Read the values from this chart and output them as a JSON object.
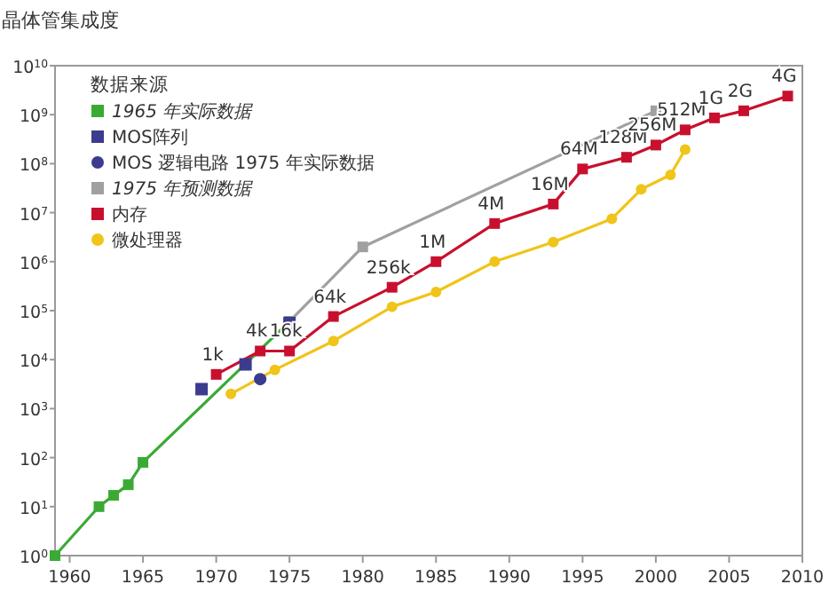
{
  "chart_data": {
    "type": "line",
    "ylabel": "晶体管集成度",
    "legend_title": "数据来源",
    "legend": "top left",
    "log": "y",
    "grid": false,
    "xlim": [
      1959,
      2010
    ],
    "xticks": [
      1960,
      1965,
      1970,
      1975,
      1980,
      1985,
      1990,
      1995,
      2000,
      2005,
      2010
    ],
    "ylim": [
      1,
      10000000000
    ],
    "yticks": [
      {
        "value": 1,
        "label": "10$^{0}$"
      },
      {
        "value": 10,
        "label": "10$^{1}$"
      },
      {
        "value": 100,
        "label": "10$^{2}$"
      },
      {
        "value": 1000,
        "label": "10$^{3}$"
      },
      {
        "value": 10000,
        "label": "10$^{4}$"
      },
      {
        "value": 100000,
        "label": "10$^{5}$"
      },
      {
        "value": 1000000,
        "label": "10$^{6}$"
      },
      {
        "value": 10000000,
        "label": "10$^{7}$"
      },
      {
        "value": 100000000,
        "label": "10$^{8}$"
      },
      {
        "value": 1000000000,
        "label": "10$^{9}$"
      },
      {
        "value": 10000000000,
        "label": "10$^{10}$"
      }
    ],
    "series": [
      {
        "name": "1965 年实际数据",
        "marker": "square",
        "color": "#3aaa35",
        "x": [
          1959,
          1962,
          1963,
          1964,
          1965,
          1975
        ],
        "values": [
          1,
          10,
          17,
          28,
          80,
          60000
        ]
      },
      {
        "name": "MOS阵列",
        "type": "scatter",
        "marker": "square",
        "color": "#3b3b8f",
        "x": [
          1969,
          1972,
          1975
        ],
        "values": [
          2500,
          8000,
          56000
        ]
      },
      {
        "name": "MOS 逻辑电路 1975 年实际数据",
        "type": "scatter",
        "marker": "circle",
        "color": "#3b3b8f",
        "x": [
          1973
        ],
        "values": [
          4000
        ]
      },
      {
        "name": "1975 年预测数据",
        "marker": "square",
        "color": "#a0a0a0",
        "x": [
          1975,
          1980,
          2000
        ],
        "values": [
          60000,
          2000000,
          1200000000
        ]
      },
      {
        "name": "内存",
        "marker": "square",
        "color": "#c8102e",
        "x": [
          1970,
          1973,
          1975,
          1978,
          1982,
          1985,
          1989,
          1993,
          1995,
          1998,
          2000,
          2002,
          2004,
          2006,
          2009
        ],
        "values": [
          5000,
          15000,
          15000,
          76000,
          300000,
          1000000,
          6000000,
          15000000,
          78000000,
          135000000,
          240000000,
          490000000,
          860000000,
          1200000000,
          2400000000
        ]
      },
      {
        "name": "微处理器",
        "marker": "circle",
        "color": "#f0c419",
        "x": [
          1971,
          1974,
          1978,
          1982,
          1985,
          1989,
          1993,
          1997,
          1999,
          2001,
          2002
        ],
        "values": [
          2000,
          6200,
          24000,
          120000,
          240000,
          1000000,
          2500000,
          7500000,
          30000000,
          59000000,
          195000000
        ]
      }
    ],
    "annotations": [
      {
        "text": "1k",
        "x": 1970,
        "y": 5000
      },
      {
        "text": "4k",
        "x": 1973,
        "y": 15000
      },
      {
        "text": "16k",
        "x": 1975,
        "y": 15000
      },
      {
        "text": "64k",
        "x": 1978,
        "y": 76000
      },
      {
        "text": "256k",
        "x": 1982,
        "y": 300000
      },
      {
        "text": "1M",
        "x": 1985,
        "y": 1000000
      },
      {
        "text": "4M",
        "x": 1989,
        "y": 6000000
      },
      {
        "text": "16M",
        "x": 1993,
        "y": 15000000
      },
      {
        "text": "64M",
        "x": 1995,
        "y": 78000000
      },
      {
        "text": "128M",
        "x": 1998,
        "y": 135000000
      },
      {
        "text": "256M",
        "x": 2000,
        "y": 240000000
      },
      {
        "text": "512M",
        "x": 2002,
        "y": 490000000
      },
      {
        "text": "1G",
        "x": 2004,
        "y": 860000000
      },
      {
        "text": "2G",
        "x": 2006,
        "y": 1200000000
      },
      {
        "text": "4G",
        "x": 2009,
        "y": 2400000000
      }
    ]
  }
}
